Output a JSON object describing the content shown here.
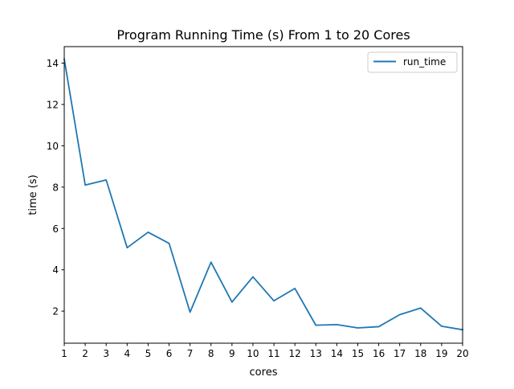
{
  "chart_data": {
    "type": "line",
    "title": "Program Running Time (s) From 1 to 20 Cores",
    "xlabel": "cores",
    "ylabel": "time (s)",
    "x": [
      1,
      2,
      3,
      4,
      5,
      6,
      7,
      8,
      9,
      10,
      11,
      12,
      13,
      14,
      15,
      16,
      17,
      18,
      19,
      20
    ],
    "series": [
      {
        "name": "run_time",
        "values": [
          14.2,
          8.1,
          8.35,
          5.07,
          5.82,
          5.28,
          1.95,
          4.37,
          2.44,
          3.66,
          2.5,
          3.1,
          1.32,
          1.35,
          1.19,
          1.25,
          1.83,
          2.15,
          1.27,
          1.1
        ],
        "color": "#1f77b4"
      }
    ],
    "xlim": [
      1,
      20
    ],
    "ylim": [
      0.45,
      14.8
    ],
    "xticks": [
      1,
      2,
      3,
      4,
      5,
      6,
      7,
      8,
      9,
      10,
      11,
      12,
      13,
      14,
      15,
      16,
      17,
      18,
      19,
      20
    ],
    "yticks": [
      2,
      4,
      6,
      8,
      10,
      12,
      14
    ],
    "grid": false,
    "legend_position": "top-right"
  }
}
